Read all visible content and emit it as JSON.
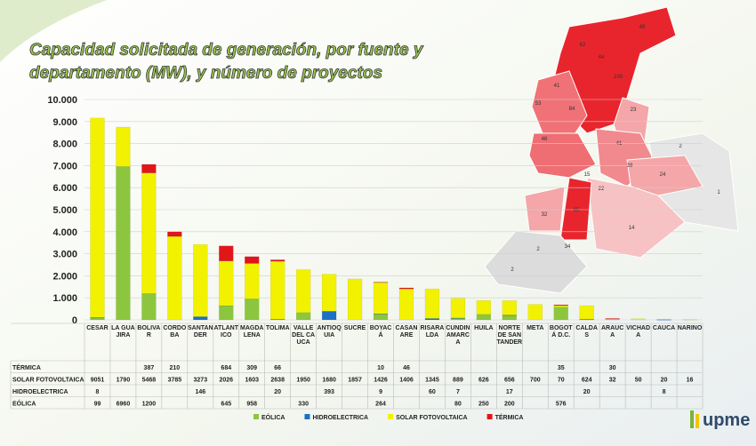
{
  "chart_data": {
    "type": "stacked_bar",
    "title": "Capacidad solicitada de generación, por fuente y departamento (MW), y número de proyectos",
    "categories": [
      "CESAR",
      "LA GUAJIRA",
      "BOLÍVAR",
      "CÓRDOBA",
      "SANTANDER",
      "ATLÁNTICO",
      "MAGDALENA",
      "TOLIMA",
      "VALLE DEL CAUCA",
      "ANTIOQUIA",
      "SUCRE",
      "BOYACÁ",
      "CASANARE",
      "RISARALDA",
      "CUNDINAMARCA",
      "HUILA",
      "NORTE DE SANTANDER",
      "META",
      "BOGOTÁ D.C.",
      "CALDAS",
      "ARAUCA",
      "VICHADA",
      "CAUCA",
      "NARIÑO"
    ],
    "series": [
      {
        "name": "EÓLICA",
        "color": "#8cc63f",
        "values": [
          99,
          6960,
          1200,
          null,
          null,
          645,
          958,
          null,
          330,
          null,
          null,
          264,
          null,
          null,
          80,
          250,
          200,
          null,
          576,
          null,
          null,
          null,
          null,
          null
        ]
      },
      {
        "name": "HIDROELECTRICA",
        "color": "#1f6fc4",
        "values": [
          8,
          null,
          null,
          null,
          146,
          null,
          null,
          20,
          null,
          393,
          null,
          9,
          null,
          60,
          7,
          null,
          17,
          null,
          null,
          20,
          null,
          null,
          8,
          null
        ]
      },
      {
        "name": "SOLAR FOTOVOLTAICA",
        "color": "#f2f200",
        "values": [
          9051,
          1790,
          5468,
          3785,
          3273,
          2026,
          1603,
          2638,
          1950,
          1680,
          1857,
          1426,
          1406,
          1345,
          889,
          626,
          656,
          700,
          70,
          624,
          32,
          50,
          20,
          16
        ]
      },
      {
        "name": "TÉRMICA",
        "color": "#e0161b",
        "values": [
          null,
          null,
          387,
          210,
          null,
          684,
          309,
          66,
          null,
          null,
          null,
          10,
          46,
          null,
          null,
          null,
          null,
          null,
          35,
          null,
          30,
          null,
          null,
          null
        ]
      }
    ],
    "ylim": [
      0,
      10000
    ],
    "yticks": [
      0,
      {
        "value": 1000,
        "label": "1.000"
      },
      {
        "value": 2000,
        "label": "2.000"
      },
      {
        "value": 3000,
        "label": "3.000"
      },
      {
        "value": 4000,
        "label": "4.000"
      },
      {
        "value": 5000,
        "label": "5.000"
      },
      {
        "value": 6000,
        "label": "6.000"
      },
      {
        "value": 7000,
        "label": "7.000"
      },
      {
        "value": 8000,
        "label": "8.000"
      },
      {
        "value": 9000,
        "label": "9.000"
      },
      {
        "value": 10000,
        "label": "10.000"
      }
    ],
    "grid": true,
    "legend": "bottom"
  },
  "map": {
    "labels": [
      "49",
      "62",
      "44",
      "100",
      "41",
      "53",
      "84",
      "23",
      "46",
      "41",
      "38",
      "2",
      "24",
      "1",
      "22",
      "15",
      "32",
      "65",
      "14",
      "2",
      "34",
      "2"
    ]
  },
  "logo": "upme"
}
